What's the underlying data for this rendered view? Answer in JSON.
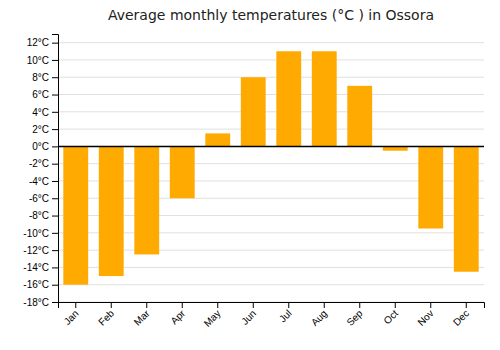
{
  "chart_data": {
    "type": "bar",
    "title": "Average monthly temperatures (°C ) in Ossora",
    "categories": [
      "Jan",
      "Feb",
      "Mar",
      "Apr",
      "May",
      "Jun",
      "Jul",
      "Aug",
      "Sep",
      "Oct",
      "Nov",
      "Dec"
    ],
    "values": [
      -16,
      -15,
      -12.5,
      -6,
      1.5,
      8,
      11,
      11,
      7,
      -0.5,
      -9.5,
      -14.5
    ],
    "color": "#FFAA00",
    "ylim": [
      -18,
      13
    ],
    "yticks": [
      {
        "value": -18,
        "label": "-18°C"
      },
      {
        "value": -16,
        "label": "-16°C"
      },
      {
        "value": -14,
        "label": "-14°C"
      },
      {
        "value": -12,
        "label": "-12°C"
      },
      {
        "value": -10,
        "label": "-10°C"
      },
      {
        "value": -8,
        "label": "-8°C"
      },
      {
        "value": -6,
        "label": "-6°C"
      },
      {
        "value": -4,
        "label": "-4°C"
      },
      {
        "value": -2,
        "label": "-2°C"
      },
      {
        "value": 0,
        "label": "0°C"
      },
      {
        "value": 2,
        "label": "2°C"
      },
      {
        "value": 4,
        "label": "4°C"
      },
      {
        "value": 6,
        "label": "6°C"
      },
      {
        "value": 8,
        "label": "8°C"
      },
      {
        "value": 10,
        "label": "10°C"
      },
      {
        "value": 12,
        "label": "12°C"
      }
    ],
    "grid": true
  }
}
